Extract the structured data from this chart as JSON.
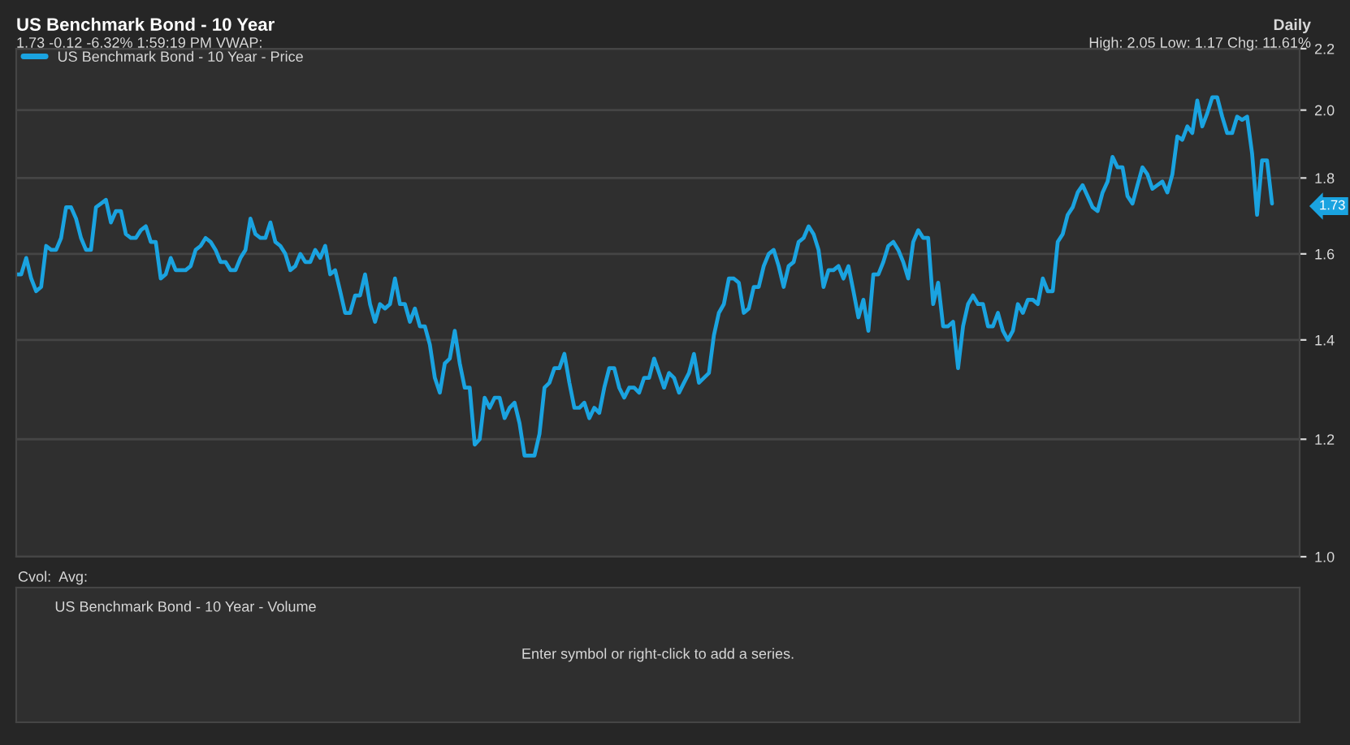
{
  "chart_data": {
    "type": "line",
    "title": "US Benchmark Bond - 10 Year",
    "subtitle": "1.73 -0.12 -6.32% 1:59:19 PM VWAP:",
    "annotations": [
      "Daily",
      "High: 2.05 Low: 1.17 Chg: 11.61%",
      "1.73",
      "Cvol:  Avg:",
      "US Benchmark Bond - 10 Year - Volume",
      "Enter symbol or right-click to add a series."
    ],
    "categories": [
      null,
      null,
      null,
      null,
      null,
      null,
      null,
      null,
      null,
      null,
      null,
      null,
      null,
      null,
      null,
      null,
      null,
      null,
      null,
      null,
      null,
      null,
      null,
      null,
      null,
      null,
      null,
      null,
      null,
      null,
      null,
      null,
      null,
      null,
      null,
      null,
      null,
      null,
      null,
      null,
      null,
      null,
      null,
      null,
      null,
      null,
      null,
      null,
      null,
      null,
      null,
      null,
      null,
      null,
      null,
      null,
      null,
      null,
      null,
      null,
      null,
      null,
      null,
      null,
      null,
      null,
      null,
      null,
      null,
      null,
      null,
      null,
      null,
      null,
      null,
      null,
      null,
      null,
      null,
      null,
      null,
      null,
      null,
      null,
      null,
      null,
      null,
      null,
      null,
      null,
      null,
      null,
      null,
      null,
      null,
      null,
      null,
      null,
      null,
      null,
      null,
      null,
      null,
      null,
      null,
      null,
      null,
      null,
      null,
      null,
      null,
      null,
      null,
      null,
      null,
      null,
      null,
      null,
      null,
      null,
      null,
      null,
      null,
      null,
      null,
      null,
      null,
      null,
      null,
      null,
      null,
      null,
      null,
      null,
      null,
      null,
      null,
      null,
      null,
      null,
      null,
      null,
      null,
      null,
      null,
      null,
      null,
      null,
      null,
      null,
      null,
      null,
      null,
      null,
      null,
      null,
      null,
      null,
      null,
      null,
      null,
      null,
      null,
      null,
      null,
      null,
      null,
      null,
      null,
      null,
      null,
      null,
      null,
      null,
      null,
      null,
      null,
      null,
      null,
      null,
      null,
      null,
      null,
      null,
      null,
      null,
      null,
      null,
      null,
      null,
      null,
      null,
      null,
      null,
      null,
      null,
      null,
      null,
      null,
      null,
      null,
      null,
      null,
      null,
      null,
      null,
      null,
      null,
      null,
      null,
      null,
      null,
      null,
      null,
      null,
      null,
      null,
      null,
      null,
      null,
      null,
      null,
      null,
      null,
      null,
      null,
      null,
      null,
      null,
      null,
      null,
      null,
      null,
      null,
      null,
      null,
      null,
      null,
      null,
      null,
      null,
      null,
      null,
      null,
      null,
      null,
      null,
      null,
      null,
      null,
      null,
      null,
      null
    ],
    "series": [
      {
        "name": "US Benchmark Bond - 10 Year - Price",
        "color": "#1aa3e0",
        "values": [
          1.55,
          1.55,
          1.59,
          1.54,
          1.51,
          1.52,
          1.62,
          1.61,
          1.61,
          1.64,
          1.72,
          1.72,
          1.69,
          1.64,
          1.61,
          1.61,
          1.72,
          1.73,
          1.74,
          1.68,
          1.71,
          1.71,
          1.65,
          1.64,
          1.64,
          1.66,
          1.67,
          1.63,
          1.63,
          1.54,
          1.55,
          1.59,
          1.56,
          1.56,
          1.56,
          1.57,
          1.61,
          1.62,
          1.64,
          1.63,
          1.61,
          1.58,
          1.58,
          1.56,
          1.56,
          1.59,
          1.61,
          1.69,
          1.65,
          1.64,
          1.64,
          1.68,
          1.63,
          1.62,
          1.6,
          1.56,
          1.57,
          1.6,
          1.58,
          1.58,
          1.61,
          1.59,
          1.62,
          1.55,
          1.56,
          1.51,
          1.46,
          1.46,
          1.5,
          1.5,
          1.55,
          1.48,
          1.44,
          1.48,
          1.47,
          1.48,
          1.54,
          1.48,
          1.48,
          1.44,
          1.47,
          1.43,
          1.43,
          1.39,
          1.32,
          1.29,
          1.35,
          1.36,
          1.42,
          1.35,
          1.3,
          1.3,
          1.19,
          1.2,
          1.28,
          1.26,
          1.28,
          1.28,
          1.24,
          1.26,
          1.27,
          1.23,
          1.17,
          1.17,
          1.17,
          1.21,
          1.3,
          1.31,
          1.34,
          1.34,
          1.37,
          1.31,
          1.26,
          1.26,
          1.27,
          1.24,
          1.26,
          1.25,
          1.3,
          1.34,
          1.34,
          1.3,
          1.28,
          1.3,
          1.3,
          1.29,
          1.32,
          1.32,
          1.36,
          1.33,
          1.3,
          1.33,
          1.32,
          1.29,
          1.31,
          1.33,
          1.37,
          1.31,
          1.32,
          1.33,
          1.41,
          1.46,
          1.48,
          1.54,
          1.54,
          1.53,
          1.46,
          1.47,
          1.52,
          1.52,
          1.57,
          1.6,
          1.61,
          1.57,
          1.52,
          1.57,
          1.58,
          1.63,
          1.64,
          1.67,
          1.65,
          1.61,
          1.52,
          1.56,
          1.56,
          1.57,
          1.54,
          1.57,
          1.51,
          1.45,
          1.49,
          1.42,
          1.55,
          1.55,
          1.58,
          1.62,
          1.63,
          1.61,
          1.58,
          1.54,
          1.63,
          1.66,
          1.64,
          1.64,
          1.48,
          1.53,
          1.43,
          1.43,
          1.44,
          1.34,
          1.43,
          1.48,
          1.5,
          1.48,
          1.48,
          1.43,
          1.43,
          1.46,
          1.42,
          1.4,
          1.42,
          1.48,
          1.46,
          1.49,
          1.49,
          1.48,
          1.54,
          1.51,
          1.51,
          1.63,
          1.65,
          1.7,
          1.72,
          1.76,
          1.78,
          1.75,
          1.72,
          1.71,
          1.76,
          1.79,
          1.86,
          1.83,
          1.83,
          1.75,
          1.73,
          1.78,
          1.83,
          1.81,
          1.77,
          1.78,
          1.79,
          1.76,
          1.81,
          1.92,
          1.91,
          1.95,
          1.93,
          2.03,
          1.95,
          1.99,
          2.04,
          2.04,
          1.98,
          1.93,
          1.93,
          1.98,
          1.97,
          1.98,
          1.87,
          1.7,
          1.85,
          1.85,
          1.73
        ]
      }
    ],
    "log": true,
    "ylim": [
      1.0,
      2.2
    ],
    "yticks": [
      {
        "value": 1.0,
        "label": "1.0"
      },
      1.2,
      1.4,
      1.6,
      1.8,
      {
        "value": 2.0,
        "label": "2.0"
      },
      2.2
    ],
    "grid": "y",
    "legend": "top left",
    "tick_labels": "y",
    "line_style": "solid",
    "marker": "none"
  }
}
